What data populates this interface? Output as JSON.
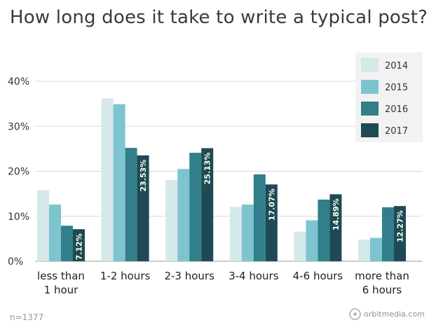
{
  "chart_data": {
    "type": "bar",
    "title": "How long does it take to write a typical post?",
    "categories": [
      [
        "less than",
        "1 hour"
      ],
      [
        "1-2 hours"
      ],
      [
        "2-3 hours"
      ],
      [
        "3-4 hours"
      ],
      [
        "4-6 hours"
      ],
      [
        "more than",
        "6 hours"
      ]
    ],
    "series": [
      {
        "name": "2014",
        "color": "#d5e8ea",
        "values": [
          15.8,
          36.2,
          18.1,
          12.1,
          6.6,
          4.8
        ]
      },
      {
        "name": "2015",
        "color": "#7ec4cf",
        "values": [
          12.6,
          34.9,
          20.5,
          12.6,
          9.1,
          5.2
        ]
      },
      {
        "name": "2016",
        "color": "#327f8b",
        "values": [
          7.9,
          25.2,
          24.1,
          19.3,
          13.7,
          12.0
        ]
      },
      {
        "name": "2017",
        "color": "#1e4a53",
        "values": [
          7.12,
          23.53,
          25.13,
          17.07,
          14.89,
          12.27
        ]
      }
    ],
    "data_labels": {
      "series": "2017",
      "texts": [
        "7.12%",
        "23.53%",
        "25.13%",
        "17.07%",
        "14.89%",
        "12.27%"
      ]
    },
    "yticks": [
      0,
      10,
      20,
      30,
      40
    ],
    "ytick_labels": [
      "0%",
      "10%",
      "20%",
      "30%",
      "40%"
    ],
    "ylim": [
      0,
      40
    ],
    "grid": true,
    "legend": "top-right",
    "note": "n=1377",
    "brand": "orbitmedia.com"
  }
}
